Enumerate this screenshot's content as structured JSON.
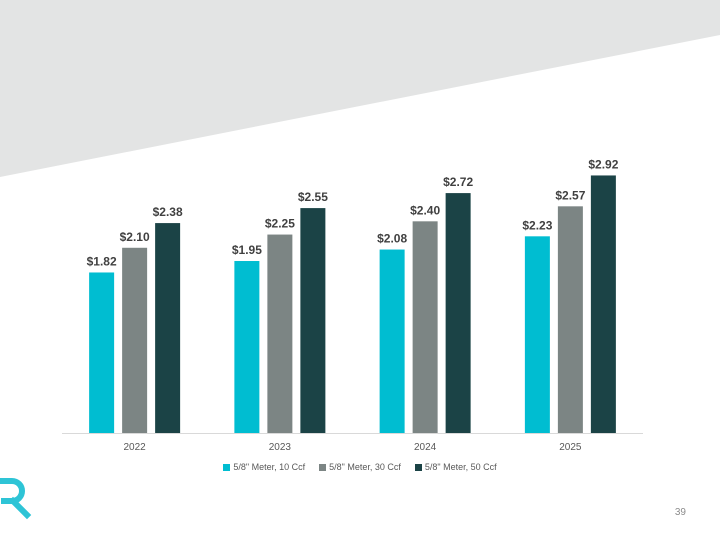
{
  "page": {
    "number": "39"
  },
  "colors": {
    "band": "#e3e4e4",
    "series": [
      "#00bdd1",
      "#7c8584",
      "#1b4346"
    ],
    "axis_text": "#595959",
    "label_text": "#404040",
    "logo": "#2ec4d6"
  },
  "logo": {
    "icon": "stylized-R-logo-icon"
  },
  "chart_data": {
    "type": "bar",
    "categories": [
      "2022",
      "2023",
      "2024",
      "2025"
    ],
    "series": [
      {
        "name": "5/8\" Meter, 10 Ccf",
        "values": [
          1.82,
          1.95,
          2.08,
          2.23
        ],
        "labels": [
          "$1.82",
          "$1.95",
          "$2.08",
          "$2.23"
        ]
      },
      {
        "name": "5/8\" Meter, 30 Ccf",
        "values": [
          2.1,
          2.25,
          2.4,
          2.57
        ],
        "labels": [
          "$2.10",
          "$2.25",
          "$2.40",
          "$2.57"
        ]
      },
      {
        "name": "5/8\" Meter, 50 Ccf",
        "values": [
          2.38,
          2.55,
          2.72,
          2.92
        ],
        "labels": [
          "$2.38",
          "$2.55",
          "$2.72",
          "$2.92"
        ]
      }
    ],
    "ylim": [
      0,
      3.2
    ],
    "grid": false,
    "y_axis_visible": false,
    "legend": "bottom",
    "title": "",
    "xlabel": "",
    "ylabel": ""
  }
}
